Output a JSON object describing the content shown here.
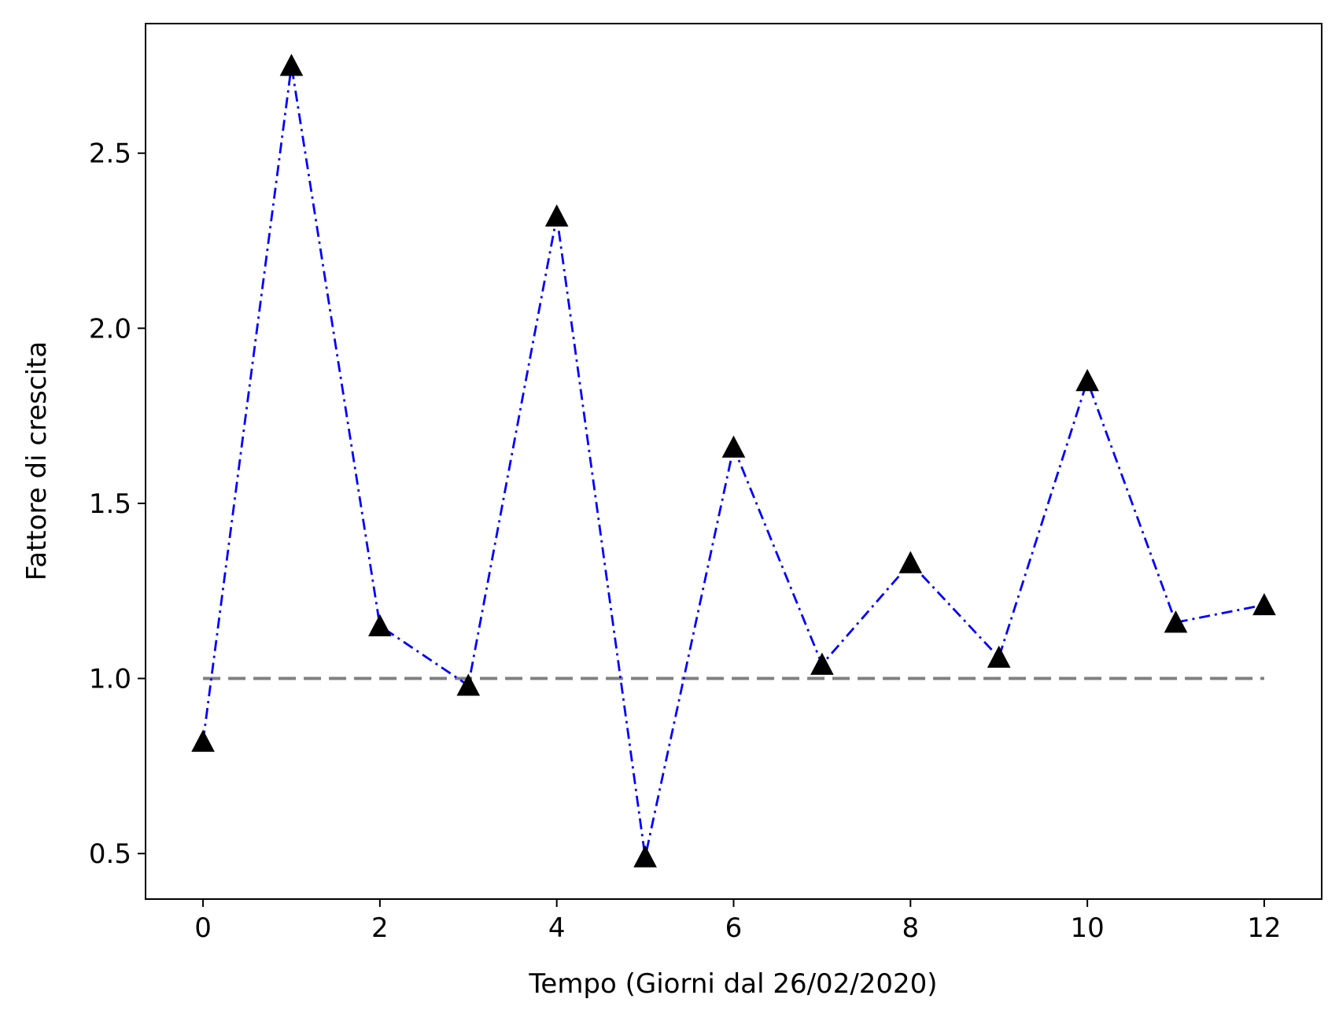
{
  "chart_data": {
    "type": "line",
    "title": "",
    "xlabel": "Tempo (Giorni dal 26/02/2020)",
    "ylabel": "Fattore di crescita",
    "xlim": [
      -0.65,
      12.65
    ],
    "ylim": [
      0.37,
      2.87
    ],
    "xticks": [
      0,
      2,
      4,
      6,
      8,
      10,
      12
    ],
    "xtick_labels": [
      "0",
      "2",
      "4",
      "6",
      "8",
      "10",
      "12"
    ],
    "yticks": [
      0.5,
      1.0,
      1.5,
      2.0,
      2.5
    ],
    "ytick_labels": [
      "0.5",
      "1.0",
      "1.5",
      "2.0",
      "2.5"
    ],
    "grid": false,
    "series": [
      {
        "style": "dash-dot line with triangle markers",
        "line_color": "#0000ff",
        "marker_color": "#000000",
        "marker": "triangle-up",
        "x": [
          0,
          1,
          2,
          3,
          4,
          5,
          6,
          7,
          8,
          9,
          10,
          11,
          12
        ],
        "values": [
          0.82,
          2.75,
          1.15,
          0.98,
          2.32,
          0.49,
          1.66,
          1.04,
          1.33,
          1.06,
          1.85,
          1.16,
          1.21
        ]
      }
    ],
    "reference_line": {
      "y": 1.0,
      "x_range": [
        0,
        12
      ],
      "color": "#808080",
      "style": "dashed"
    }
  }
}
